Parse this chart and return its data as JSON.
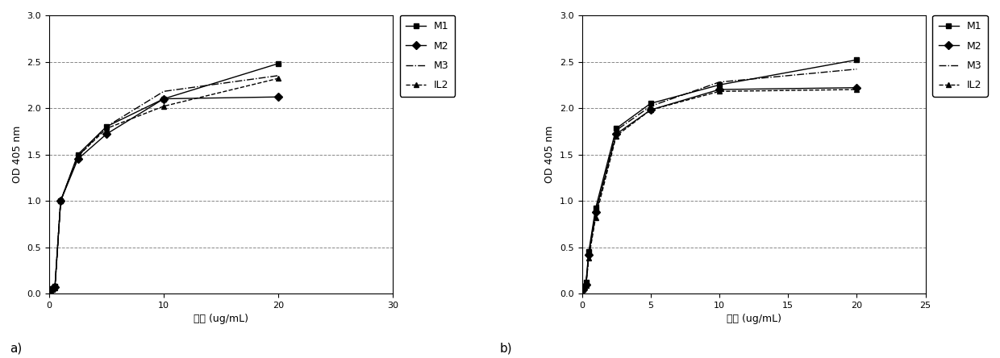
{
  "panel_a": {
    "x": [
      0.1,
      0.3,
      0.5,
      1.0,
      2.5,
      5.0,
      10.0,
      20.0
    ],
    "M1": [
      0.03,
      0.05,
      0.08,
      1.0,
      1.5,
      1.8,
      2.1,
      2.48
    ],
    "M2": [
      0.03,
      0.05,
      0.07,
      1.0,
      1.45,
      1.72,
      2.1,
      2.12
    ],
    "M3": [
      0.03,
      0.05,
      0.07,
      1.0,
      1.48,
      1.8,
      2.18,
      2.35
    ],
    "IL2": [
      0.03,
      0.04,
      0.06,
      1.0,
      1.48,
      1.78,
      2.02,
      2.32
    ],
    "xlabel": "浓度 (ug/mL)",
    "ylabel": "OD 405 nm",
    "xlim": [
      0,
      30
    ],
    "ylim": [
      0,
      3
    ],
    "xticks": [
      0,
      10,
      20,
      30
    ],
    "yticks": [
      0,
      0.5,
      1.0,
      1.5,
      2.0,
      2.5,
      3.0
    ],
    "label": "a)"
  },
  "panel_b": {
    "x": [
      0.1,
      0.3,
      0.5,
      1.0,
      2.5,
      5.0,
      10.0,
      20.0
    ],
    "M1": [
      0.05,
      0.12,
      0.45,
      0.92,
      1.78,
      2.05,
      2.25,
      2.52
    ],
    "M2": [
      0.04,
      0.1,
      0.42,
      0.88,
      1.72,
      1.98,
      2.2,
      2.22
    ],
    "M3": [
      0.04,
      0.1,
      0.4,
      0.85,
      1.76,
      2.02,
      2.28,
      2.42
    ],
    "IL2": [
      0.04,
      0.09,
      0.38,
      0.82,
      1.7,
      1.98,
      2.18,
      2.2
    ],
    "xlabel": "浓度 (ug/mL)",
    "ylabel": "OD 405 nm",
    "xlim": [
      0,
      25
    ],
    "ylim": [
      0,
      3
    ],
    "xticks": [
      0,
      5,
      10,
      15,
      20,
      25
    ],
    "yticks": [
      0,
      0.5,
      1.0,
      1.5,
      2.0,
      2.5,
      3.0
    ],
    "label": "b)"
  },
  "background_color": "#ffffff",
  "grid_color": "#888888",
  "fontsize_axis": 9,
  "fontsize_tick": 8,
  "fontsize_legend": 9,
  "fontsize_label": 11
}
